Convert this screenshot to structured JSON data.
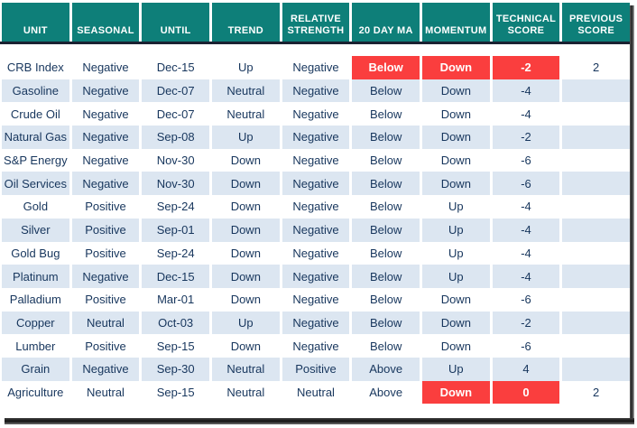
{
  "chart_data": {
    "type": "table",
    "title": "Commodity technical score table",
    "columns": [
      "UNIT",
      "SEASONAL",
      "UNTIL",
      "TREND",
      "RELATIVE STRENGTH",
      "20 DAY MA",
      "MOMENTUM",
      "TECHNICAL SCORE",
      "PREVIOUS SCORE"
    ],
    "rows": [
      {
        "cells": [
          "CRB Index",
          "Negative",
          "Dec-15",
          "Up",
          "Negative",
          "Below",
          "Down",
          "-2",
          "2"
        ],
        "alert_cols": [
          5,
          6,
          7
        ]
      },
      {
        "cells": [
          "Gasoline",
          "Negative",
          "Dec-07",
          "Neutral",
          "Negative",
          "Below",
          "Down",
          "-4",
          ""
        ],
        "alert_cols": []
      },
      {
        "cells": [
          "Crude Oil",
          "Negative",
          "Dec-07",
          "Neutral",
          "Negative",
          "Below",
          "Down",
          "-4",
          ""
        ],
        "alert_cols": []
      },
      {
        "cells": [
          "Natural Gas",
          "Negative",
          "Sep-08",
          "Up",
          "Negative",
          "Below",
          "Down",
          "-2",
          ""
        ],
        "alert_cols": []
      },
      {
        "cells": [
          "S&P Energy",
          "Negative",
          "Nov-30",
          "Down",
          "Negative",
          "Below",
          "Down",
          "-6",
          ""
        ],
        "alert_cols": []
      },
      {
        "cells": [
          "Oil Services",
          "Negative",
          "Nov-30",
          "Down",
          "Negative",
          "Below",
          "Down",
          "-6",
          ""
        ],
        "alert_cols": []
      },
      {
        "cells": [
          "Gold",
          "Positive",
          "Sep-24",
          "Down",
          "Negative",
          "Below",
          "Up",
          "-4",
          ""
        ],
        "alert_cols": []
      },
      {
        "cells": [
          "Silver",
          "Positive",
          "Sep-01",
          "Down",
          "Negative",
          "Below",
          "Up",
          "-4",
          ""
        ],
        "alert_cols": []
      },
      {
        "cells": [
          "Gold Bug",
          "Positive",
          "Sep-24",
          "Down",
          "Negative",
          "Below",
          "Up",
          "-4",
          ""
        ],
        "alert_cols": []
      },
      {
        "cells": [
          "Platinum",
          "Negative",
          "Dec-15",
          "Down",
          "Negative",
          "Below",
          "Up",
          "-4",
          ""
        ],
        "alert_cols": []
      },
      {
        "cells": [
          "Palladium",
          "Positive",
          "Mar-01",
          "Down",
          "Negative",
          "Below",
          "Down",
          "-6",
          ""
        ],
        "alert_cols": []
      },
      {
        "cells": [
          "Copper",
          "Neutral",
          "Oct-03",
          "Up",
          "Negative",
          "Below",
          "Down",
          "-2",
          ""
        ],
        "alert_cols": []
      },
      {
        "cells": [
          "Lumber",
          "Positive",
          "Sep-15",
          "Down",
          "Negative",
          "Below",
          "Down",
          "-6",
          ""
        ],
        "alert_cols": []
      },
      {
        "cells": [
          "Grain",
          "Negative",
          "Sep-30",
          "Neutral",
          "Positive",
          "Above",
          "Up",
          "4",
          ""
        ],
        "alert_cols": []
      },
      {
        "cells": [
          "Agriculture",
          "Neutral",
          "Sep-15",
          "Neutral",
          "Neutral",
          "Above",
          "Down",
          "0",
          "2"
        ],
        "alert_cols": [
          6,
          7
        ]
      }
    ],
    "layout_hints": {
      "striped_rows": "even data rows (2nd, 4th, ...) shaded light blue",
      "header_text_color": "#FFFFFF",
      "alert_text_color": "#FFFFFF"
    }
  },
  "colors": {
    "header_bg": "#0E7F79",
    "alert_bg": "#FA3E3E",
    "stripe_bg": "#DCE6F1",
    "text": "#17365D",
    "divider": "#1A2232"
  }
}
